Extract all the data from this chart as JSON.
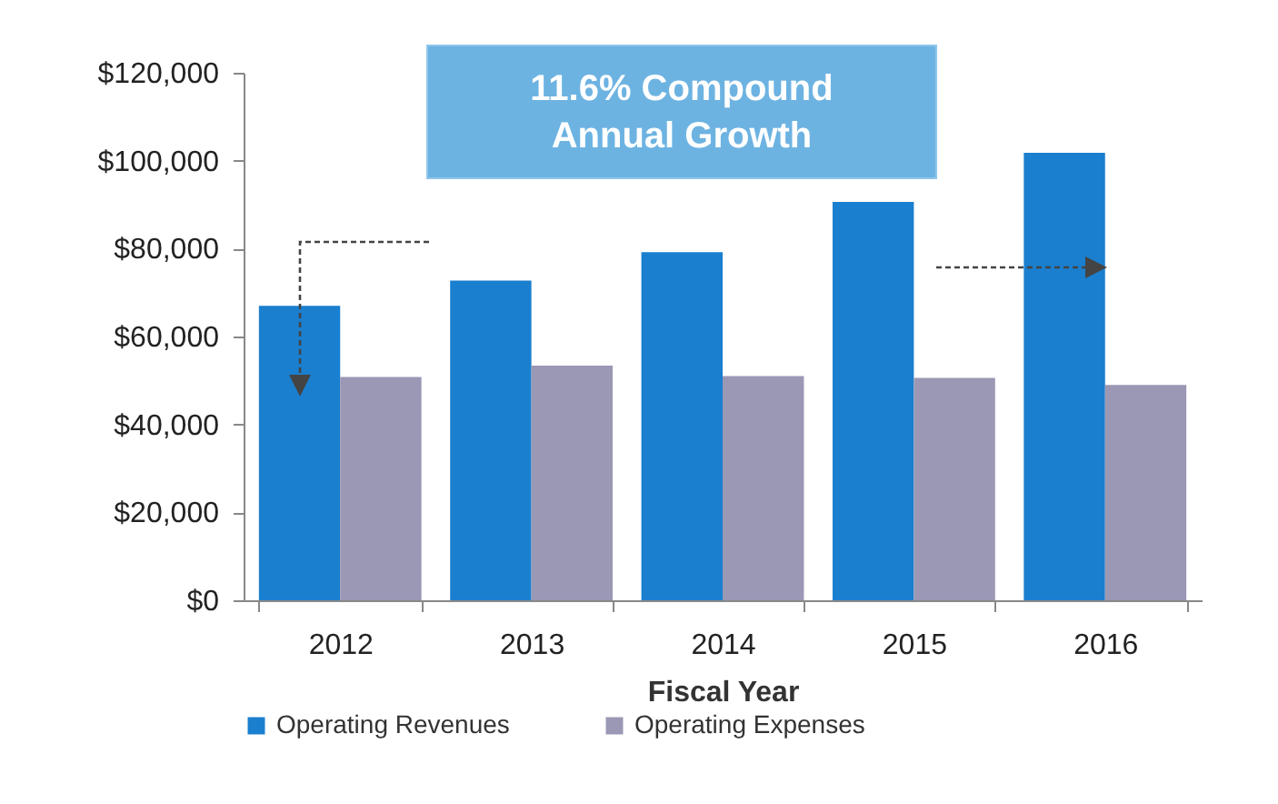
{
  "chart_data": {
    "type": "bar",
    "xlabel": "Fiscal Year",
    "categories": [
      "2012",
      "2013",
      "2014",
      "2015",
      "2016"
    ],
    "series": [
      {
        "name": "Operating Revenues",
        "color": "#1a7fcf",
        "values": [
          67000,
          72700,
          79200,
          90600,
          101800
        ]
      },
      {
        "name": "Operating Expenses",
        "color": "#9a98b5",
        "values": [
          50800,
          53400,
          51000,
          50600,
          49000
        ]
      }
    ],
    "ylim": [
      0,
      120000
    ],
    "yticks": [
      {
        "value": 0,
        "label": "$0"
      },
      {
        "value": 20000,
        "label": "$20,000"
      },
      {
        "value": 40000,
        "label": "$40,000"
      },
      {
        "value": 60000,
        "label": "$60,000"
      },
      {
        "value": 80000,
        "label": "$80,000"
      },
      {
        "value": 100000,
        "label": "$100,000"
      },
      {
        "value": 120000,
        "label": "$120,000"
      }
    ],
    "annotations": [
      "11.6% Compound Annual Growth"
    ],
    "legend": "bottom",
    "grid": false
  }
}
